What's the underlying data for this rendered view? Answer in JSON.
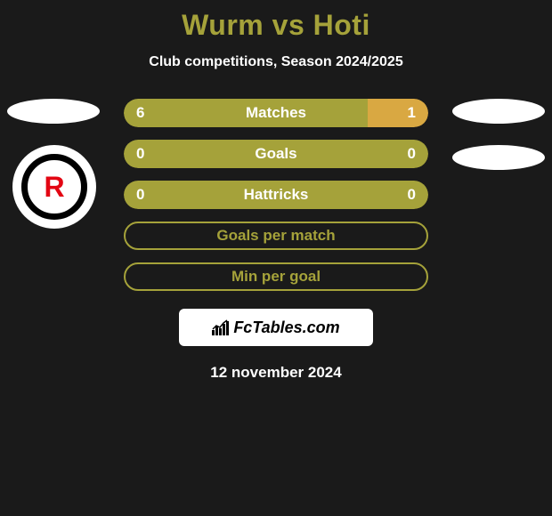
{
  "header": {
    "title": "Wurm vs Hoti",
    "title_color": "#a5a23a",
    "subtitle": "Club competitions, Season 2024/2025"
  },
  "colors": {
    "background": "#1a1a1a",
    "bar_olive": "#a5a23a",
    "bar_orange": "#d9a842",
    "text_white": "#ffffff",
    "ellipse_white": "#ffffff",
    "badge_red": "#e30613",
    "badge_black": "#000000"
  },
  "stats": [
    {
      "label": "Matches",
      "left_value": "6",
      "right_value": "1",
      "left_pct": 80,
      "right_pct": 20,
      "left_color": "#a5a23a",
      "right_color": "#d9a842",
      "type": "split"
    },
    {
      "label": "Goals",
      "left_value": "0",
      "right_value": "0",
      "fill_color": "#a5a23a",
      "type": "full"
    },
    {
      "label": "Hattricks",
      "left_value": "0",
      "right_value": "0",
      "fill_color": "#a5a23a",
      "type": "full"
    },
    {
      "label": "Goals per match",
      "border_color": "#a5a23a",
      "text_color": "#a5a23a",
      "type": "empty"
    },
    {
      "label": "Min per goal",
      "border_color": "#a5a23a",
      "text_color": "#a5a23a",
      "type": "empty"
    }
  ],
  "club_badge": {
    "letter": "R"
  },
  "footer": {
    "brand": "FcTables.com",
    "date": "12 november 2024"
  }
}
